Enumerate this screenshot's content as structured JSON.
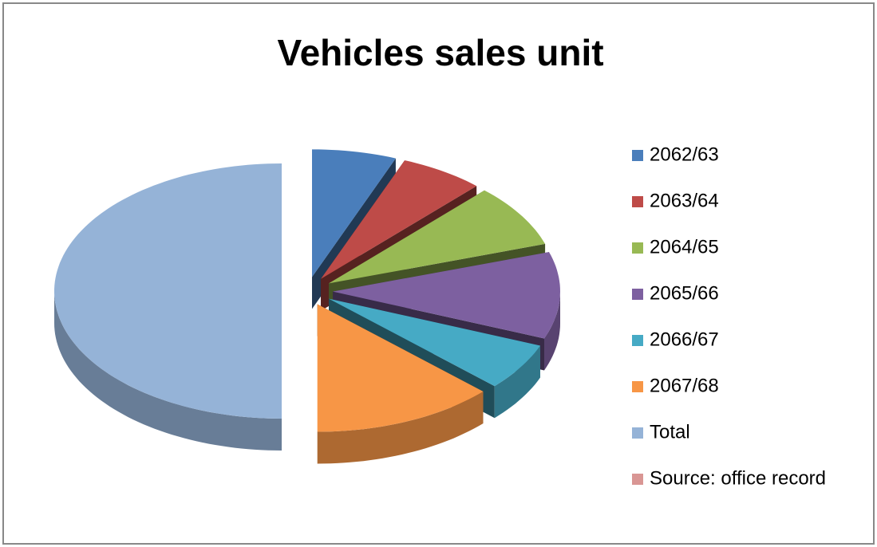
{
  "chart_data": {
    "type": "pie",
    "title": "Vehicles sales unit",
    "categories": [
      "2062/63",
      "2063/64",
      "2064/65",
      "2065/66",
      "2066/67",
      "2067/68",
      "Total",
      "Source: office record"
    ],
    "values": [
      6,
      6,
      8,
      11,
      6,
      13,
      50,
      0
    ],
    "colors": [
      "#4a7ebb",
      "#be4b48",
      "#98b954",
      "#7d60a0",
      "#46aac5",
      "#f79646",
      "#95b3d7",
      "#d99694"
    ],
    "legend": "right"
  }
}
